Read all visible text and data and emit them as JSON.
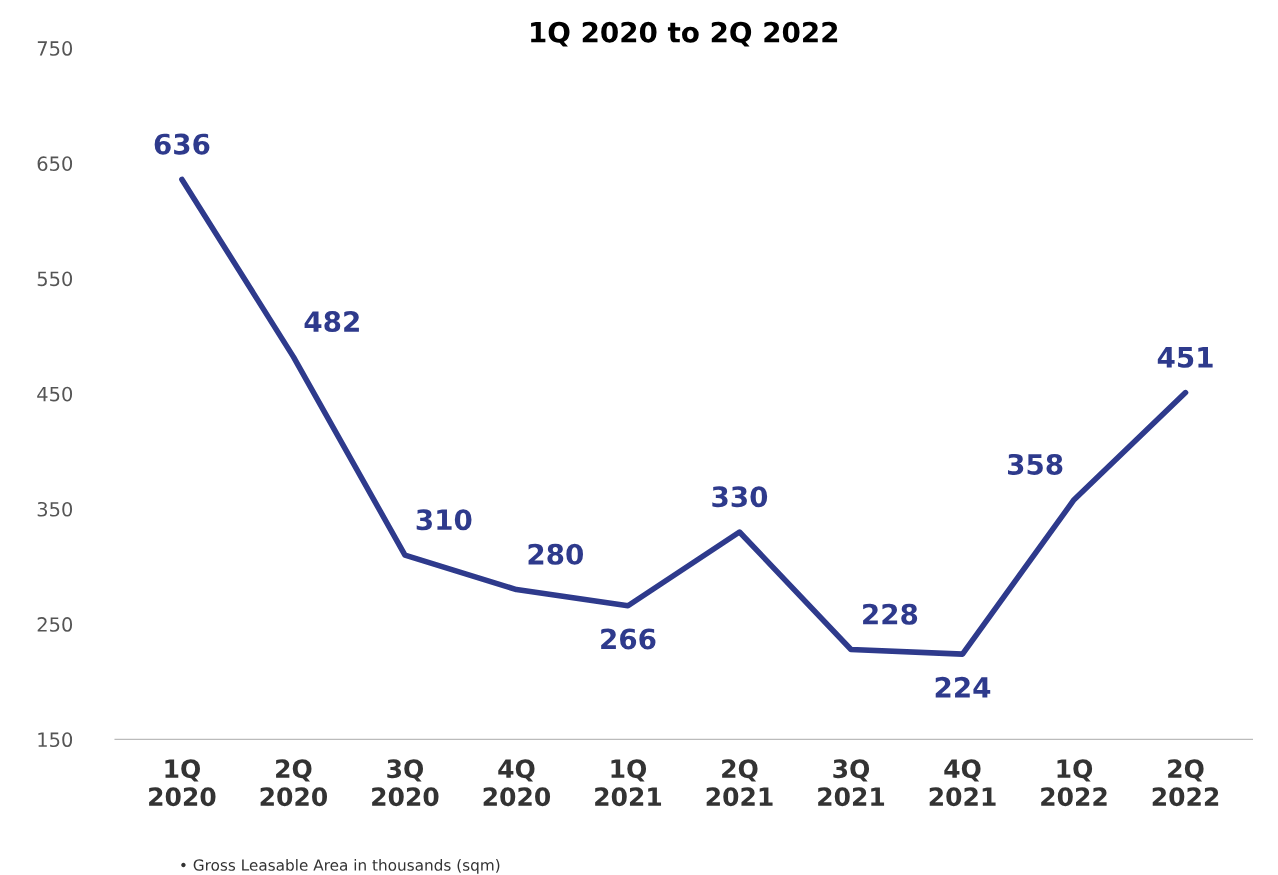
{
  "chart_data": {
    "type": "line",
    "title": "1Q 2020 to 2Q 2022",
    "categories": [
      "1Q\n2020",
      "2Q\n2020",
      "3Q\n2020",
      "4Q\n2020",
      "1Q\n2021",
      "2Q\n2021",
      "3Q\n2021",
      "4Q\n2021",
      "1Q\n2022",
      "2Q\n2022"
    ],
    "series": [
      {
        "color": "#2e3a8c",
        "values": [
          636,
          482,
          310,
          280,
          266,
          330,
          228,
          224,
          358,
          451
        ]
      }
    ],
    "ylim": [
      150,
      750
    ],
    "yticks": [
      150,
      250,
      350,
      450,
      550,
      650,
      750
    ],
    "data_labels": true,
    "grid": false,
    "marker": "none",
    "line_style": "solid",
    "annotations": [
      "• Gross Leasable Area in thousands (sqm)"
    ]
  }
}
